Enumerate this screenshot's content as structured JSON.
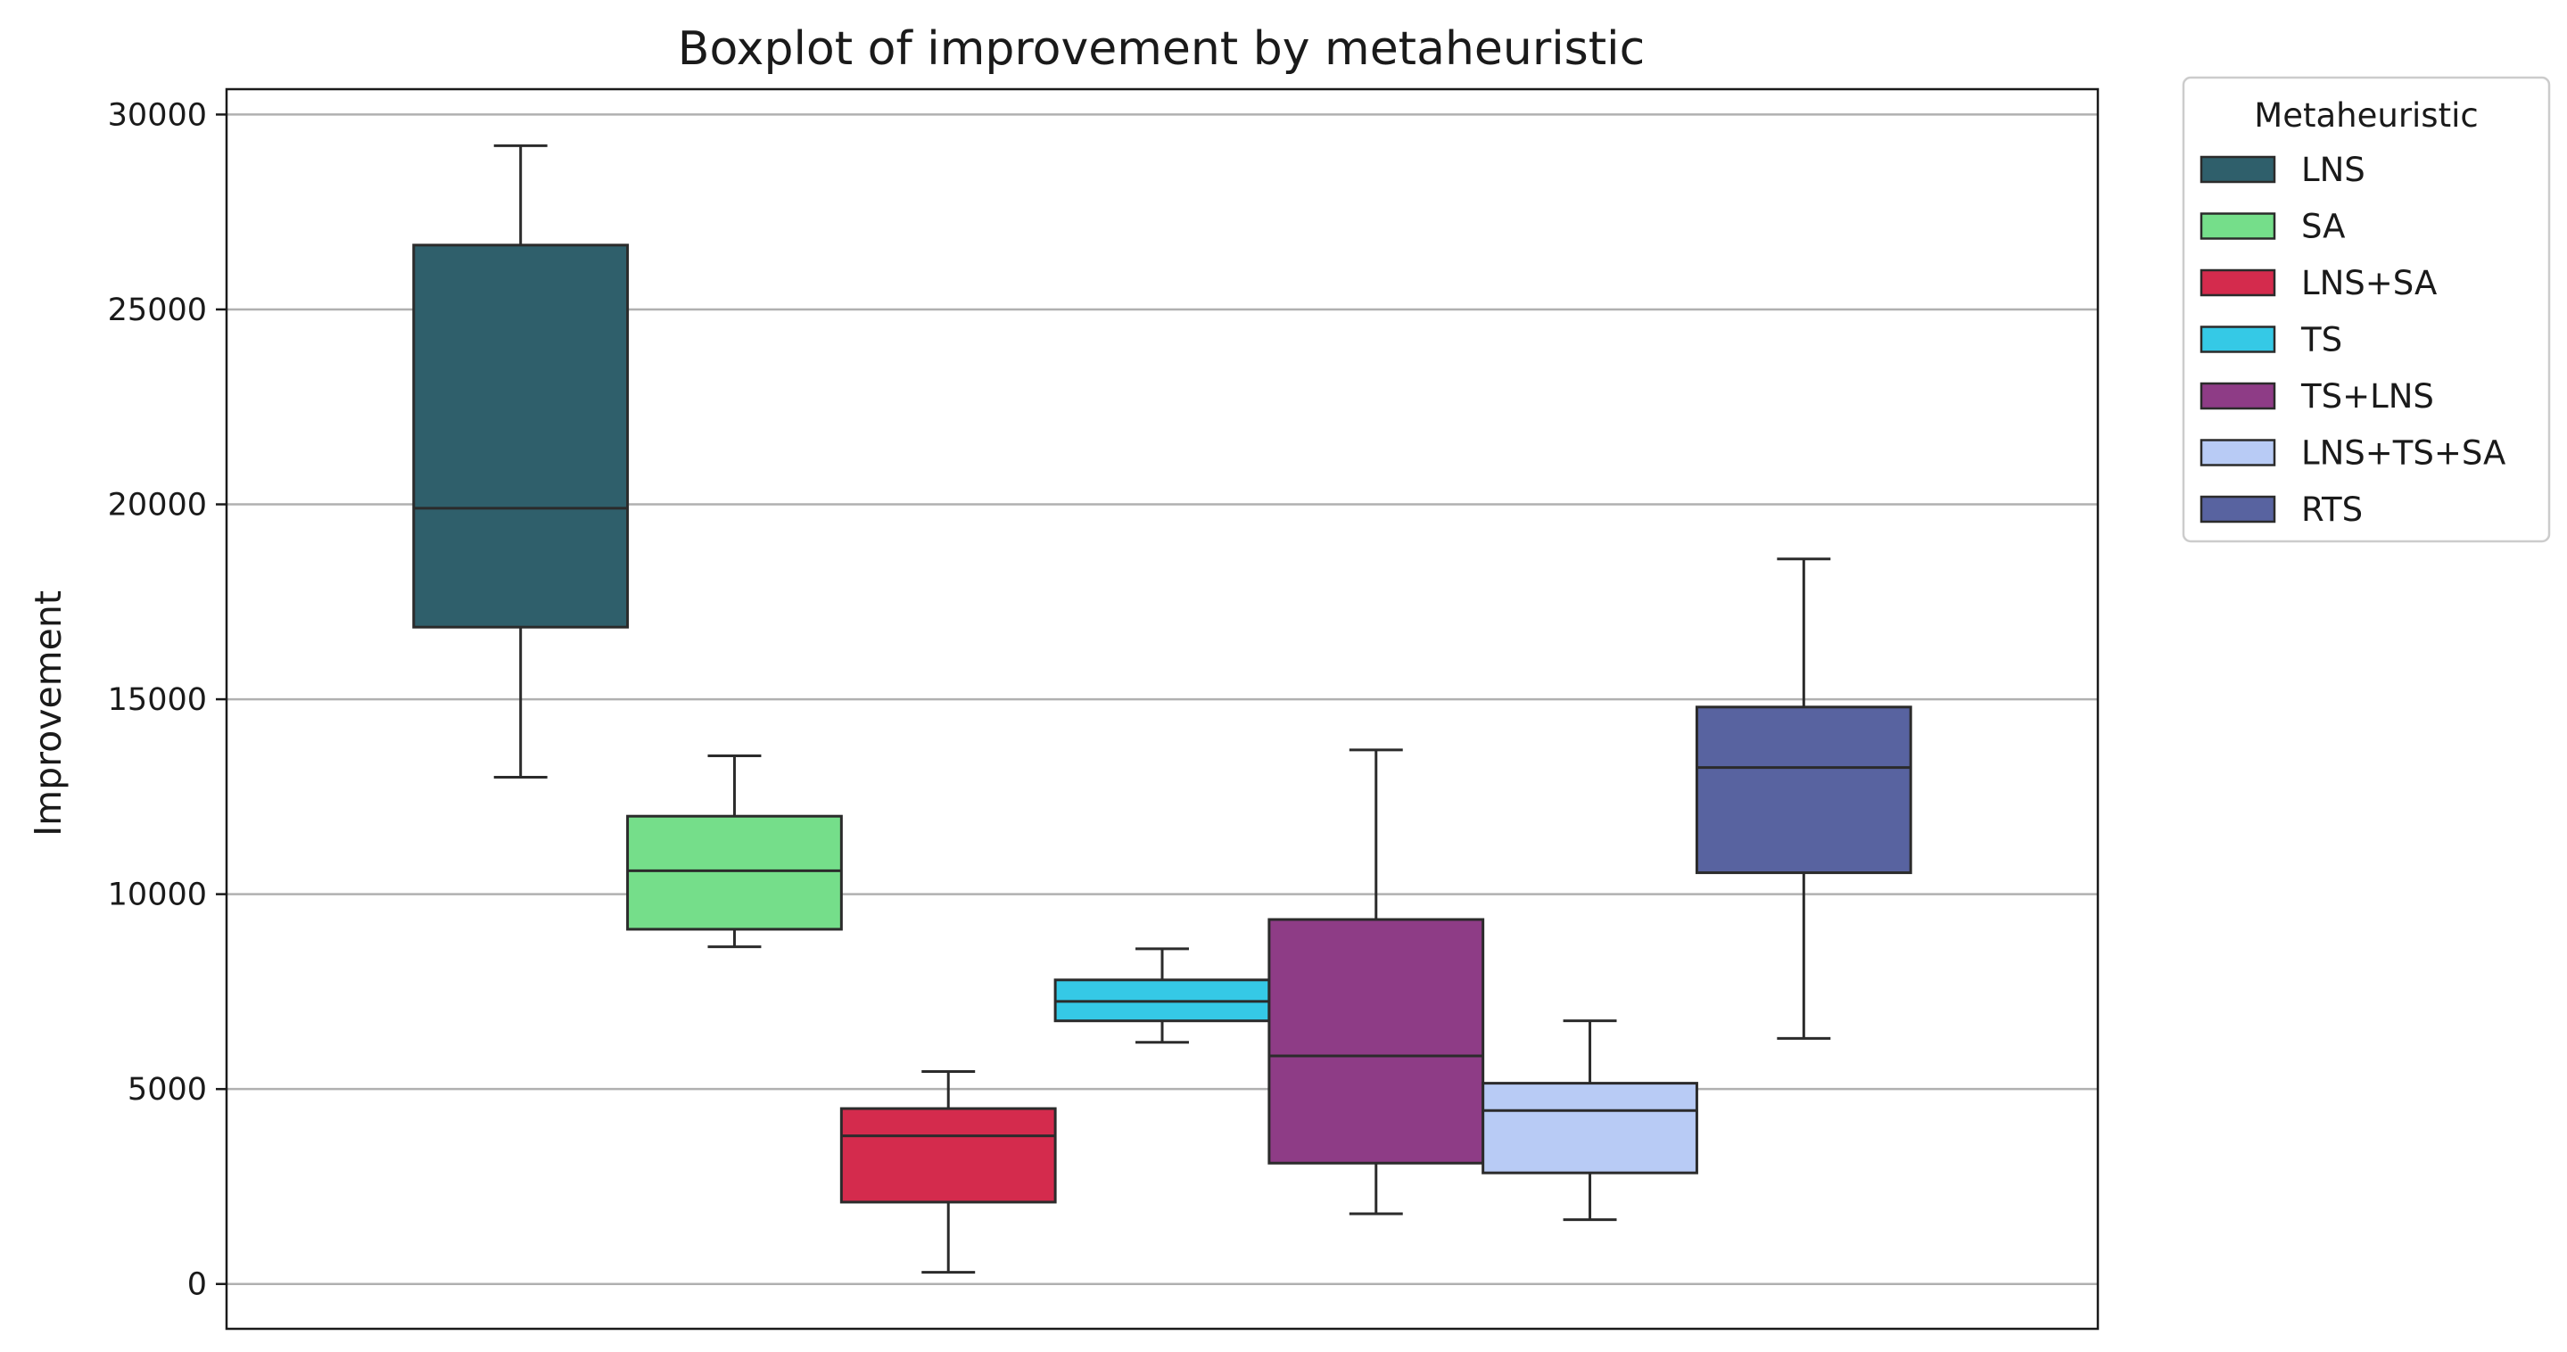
{
  "chart_data": {
    "type": "boxplot",
    "title": "Boxplot of improvement by metaheuristic",
    "xlabel": "",
    "ylabel": "Improvement",
    "ylim": [
      -1150,
      30650
    ],
    "yticks": [
      0,
      5000,
      10000,
      15000,
      20000,
      25000,
      30000
    ],
    "ytick_labels": [
      "0",
      "5000",
      "10000",
      "15000",
      "20000",
      "25000",
      "30000"
    ],
    "grid": "horizontal",
    "legend": {
      "title": "Metaheuristic",
      "placement": "outside-top-right"
    },
    "series": [
      {
        "name": "LNS",
        "color": "#2f5f6b",
        "min": 13000,
        "q1": 16850,
        "median": 19900,
        "q3": 26650,
        "max": 29200
      },
      {
        "name": "SA",
        "color": "#75de8a",
        "min": 8650,
        "q1": 9100,
        "median": 10600,
        "q3": 12000,
        "max": 13550
      },
      {
        "name": "LNS+SA",
        "color": "#d42b4d",
        "min": 300,
        "q1": 2100,
        "median": 3800,
        "q3": 4500,
        "max": 5450
      },
      {
        "name": "TS",
        "color": "#35c9e6",
        "min": 6200,
        "q1": 6750,
        "median": 7250,
        "q3": 7800,
        "max": 8600
      },
      {
        "name": "TS+LNS",
        "color": "#8e3c86",
        "min": 1800,
        "q1": 3100,
        "median": 5850,
        "q3": 9350,
        "max": 13700
      },
      {
        "name": "LNS+TS+SA",
        "color": "#b8cbf5",
        "min": 1650,
        "q1": 2850,
        "median": 4450,
        "q3": 5150,
        "max": 6750
      },
      {
        "name": "RTS",
        "color": "#5863a0",
        "min": 6300,
        "q1": 10550,
        "median": 13250,
        "q3": 14800,
        "max": 18600
      }
    ]
  }
}
